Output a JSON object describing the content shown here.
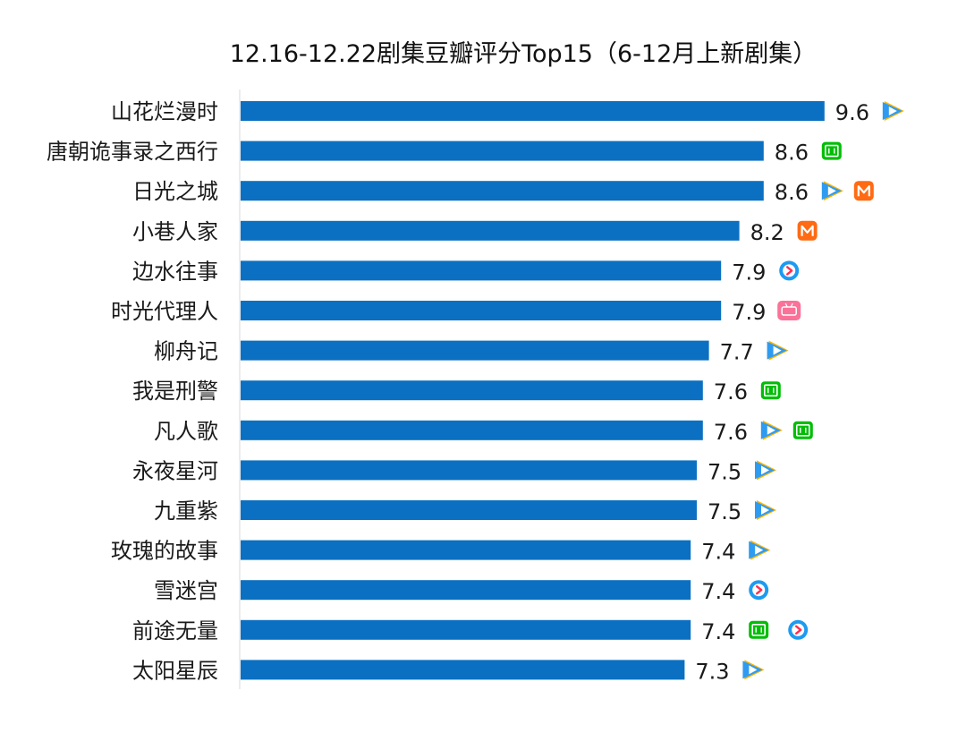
{
  "chart_data": {
    "type": "bar",
    "orientation": "horizontal",
    "title": "12.16-12.22剧集豆瓣评分Top15（6-12月上新剧集）",
    "categories": [
      "山花烂漫时",
      "唐朝诡事录之西行",
      "日光之城",
      "小巷人家",
      "边水往事",
      "时光代理人",
      "柳舟记",
      "我是刑警",
      "凡人歌",
      "永夜星河",
      "九重紫",
      "玫瑰的故事",
      "雪迷宫",
      "前途无量",
      "太阳星辰"
    ],
    "values": [
      9.6,
      8.6,
      8.6,
      8.2,
      7.9,
      7.9,
      7.7,
      7.6,
      7.6,
      7.5,
      7.5,
      7.4,
      7.4,
      7.4,
      7.3
    ],
    "platforms": [
      [
        "tencent-video"
      ],
      [
        "iqiyi"
      ],
      [
        "tencent-video",
        "mango-tv"
      ],
      [
        "mango-tv"
      ],
      [
        "youku"
      ],
      [
        "bilibili"
      ],
      [
        "tencent-video"
      ],
      [
        "iqiyi"
      ],
      [
        "tencent-video",
        "iqiyi"
      ],
      [
        "tencent-video"
      ],
      [
        "tencent-video"
      ],
      [
        "tencent-video"
      ],
      [
        "youku"
      ],
      [
        "iqiyi",
        "youku"
      ],
      [
        "tencent-video"
      ]
    ],
    "xlim": [
      0,
      9.6
    ],
    "grid": false,
    "legend": "none"
  },
  "colors": {
    "bar": "#0b70c1",
    "tencent_play": "#2f9bf0",
    "tencent_accent": "#ffb400",
    "iqiyi": "#00be06",
    "mango": "#ff6a13",
    "youku_ring": "#1e9bf0",
    "youku_arrow": "#ff2e4d",
    "bilibili": "#fb7299"
  }
}
